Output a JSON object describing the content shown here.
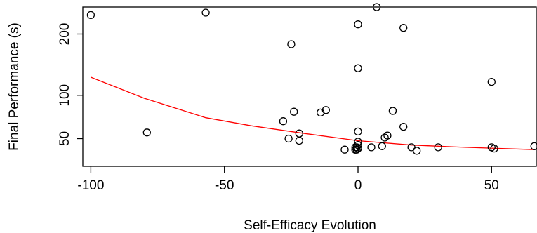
{
  "chart_data": {
    "type": "scatter",
    "xlabel": "Self-Efficacy Evolution",
    "ylabel": "Final Performance (s)",
    "xlim": [
      -103,
      67
    ],
    "ylim": [
      27,
      255
    ],
    "x_ticks": [
      -100,
      -50,
      0,
      50
    ],
    "x_tick_labels": [
      "-100",
      "-50",
      "0",
      "50"
    ],
    "y_ticks": [
      50,
      100,
      200
    ],
    "y_tick_labels": [
      "50",
      "100",
      "200"
    ],
    "y_scale": "sqrt",
    "box": true,
    "grid": false,
    "colors": {
      "points": "#000000",
      "trend": "#ff0000"
    },
    "series": [
      {
        "type": "scatter",
        "marker": "open-circle",
        "x": [
          -100,
          -79,
          -57,
          -28,
          -26,
          -25,
          -24,
          -22,
          -22,
          -14,
          -12,
          -5,
          -1,
          -1,
          -1,
          -0.5,
          -0.5,
          0,
          0,
          0,
          0,
          0,
          0,
          5,
          7,
          9,
          10,
          11,
          13,
          13,
          17,
          17,
          20,
          22,
          30,
          50,
          50,
          51,
          66
        ],
        "y": [
          238,
          56,
          243,
          68,
          50,
          181,
          79,
          55,
          48,
          78,
          81,
          40,
          40,
          42,
          40,
          40,
          42,
          44,
          47,
          57,
          140,
          219,
          41,
          42,
          255,
          43,
          51,
          53,
          80,
          80,
          212,
          62,
          42,
          39,
          42,
          119,
          42,
          41,
          43
        ]
      },
      {
        "type": "line",
        "x": [
          -100,
          -80,
          -57,
          -40,
          -20,
          0,
          20,
          40,
          66
        ],
        "y": [
          126,
          96,
          72,
          63,
          55,
          48,
          44,
          42,
          40
        ]
      }
    ]
  }
}
